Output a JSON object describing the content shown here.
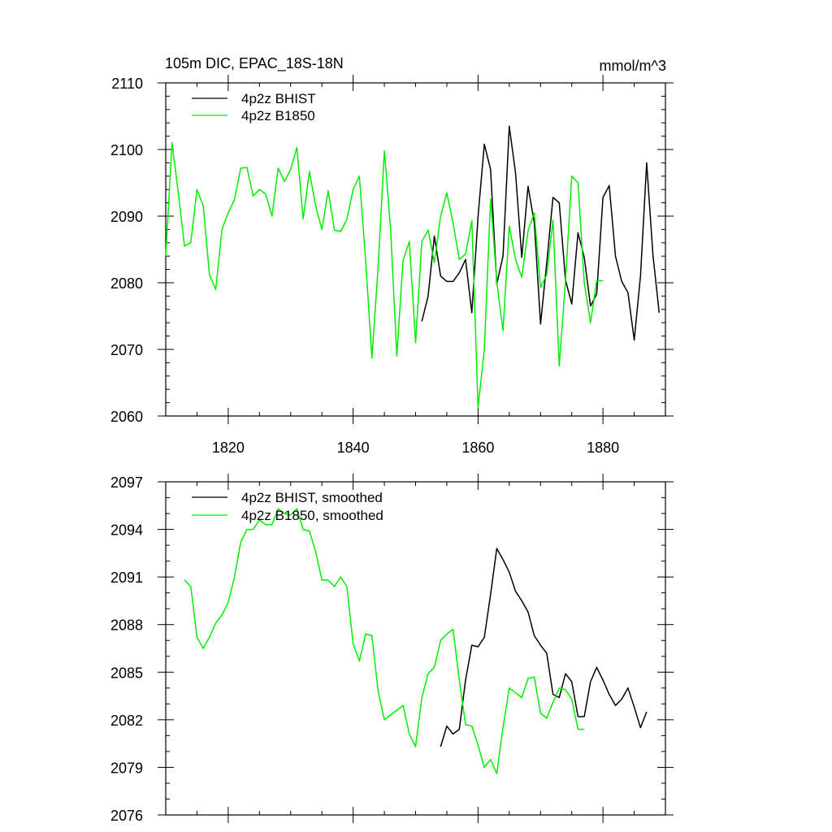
{
  "chart_data": [
    {
      "type": "line",
      "title": "105m DIC, EPAC_18S-18N",
      "units": "mmol/m^3",
      "xlim": [
        1810,
        1890
      ],
      "ylim": [
        2060,
        2110
      ],
      "x_ticks": [
        1820,
        1840,
        1860,
        1880
      ],
      "x_tick_labels": [
        "1820",
        "1840",
        "1860",
        "1880"
      ],
      "y_ticks": [
        2060,
        2070,
        2080,
        2090,
        2100,
        2110
      ],
      "y_tick_labels": [
        "2060",
        "2070",
        "2080",
        "2090",
        "2100",
        "2110"
      ],
      "legend": [
        "4p2z BHIST",
        "4p2z B1850"
      ],
      "series": [
        {
          "name": "4p2z BHIST",
          "color": "#000000",
          "x": [
            1851,
            1852,
            1853,
            1854,
            1855,
            1856,
            1857,
            1858,
            1859,
            1860,
            1861,
            1862,
            1863,
            1864,
            1865,
            1866,
            1867,
            1868,
            1869,
            1870,
            1871,
            1872,
            1873,
            1874,
            1875,
            1876,
            1877,
            1878,
            1879,
            1880,
            1881,
            1882,
            1883,
            1884,
            1885,
            1886,
            1887,
            1888,
            1889
          ],
          "values": [
            2074.2,
            2078,
            2087,
            2081,
            2080.2,
            2080.2,
            2081.5,
            2083.5,
            2075.5,
            2090,
            2100.8,
            2097,
            2079.8,
            2084,
            2103.5,
            2096.5,
            2083.8,
            2094.5,
            2089,
            2073.8,
            2083,
            2092.8,
            2092,
            2080.4,
            2076.8,
            2087.5,
            2083.8,
            2076.5,
            2078.3,
            2092.8,
            2094.6,
            2084,
            2080.2,
            2078.5,
            2071.4,
            2081,
            2098,
            2084.2,
            2075.5
          ]
        },
        {
          "name": "4p2z B1850",
          "color": "#00ee00",
          "x": [
            1810,
            1811,
            1812,
            1813,
            1814,
            1815,
            1816,
            1817,
            1818,
            1819,
            1820,
            1821,
            1822,
            1823,
            1824,
            1825,
            1826,
            1827,
            1828,
            1829,
            1830,
            1831,
            1832,
            1833,
            1834,
            1835,
            1836,
            1837,
            1838,
            1839,
            1840,
            1841,
            1842,
            1843,
            1844,
            1845,
            1846,
            1847,
            1848,
            1849,
            1850,
            1851,
            1852,
            1853,
            1854,
            1855,
            1856,
            1857,
            1858,
            1859,
            1860,
            1861,
            1862,
            1863,
            1864,
            1865,
            1866,
            1867,
            1868,
            1869,
            1870,
            1871,
            1872,
            1873,
            1874,
            1875,
            1876,
            1877,
            1878,
            1879,
            1880
          ],
          "values": [
            2084,
            2101,
            2093.5,
            2085.5,
            2086,
            2094,
            2091.6,
            2081.2,
            2079,
            2088,
            2090.5,
            2092.5,
            2097.2,
            2097.3,
            2093,
            2094,
            2093.3,
            2090,
            2097.2,
            2095.2,
            2097,
            2100.3,
            2089.6,
            2096.7,
            2091.5,
            2088,
            2093.8,
            2087.9,
            2087.7,
            2089.5,
            2094,
            2096,
            2083.4,
            2068.7,
            2082.4,
            2099.8,
            2087.9,
            2069,
            2083.4,
            2086.2,
            2071,
            2086.2,
            2087.9,
            2083,
            2090,
            2093.5,
            2089,
            2083.5,
            2084.3,
            2089.3,
            2061.3,
            2070,
            2092.6,
            2080.2,
            2072.8,
            2088.5,
            2083.5,
            2080.8,
            2087.8,
            2090.5,
            2079.3,
            2081.2,
            2089.4,
            2067.5,
            2080.3,
            2096,
            2095,
            2080,
            2074,
            2080.3,
            2080.3
          ]
        }
      ]
    },
    {
      "type": "line",
      "title": "",
      "xlim": [
        1810,
        1890
      ],
      "ylim": [
        2076,
        2097
      ],
      "x_ticks": [
        1820,
        1840,
        1860,
        1880
      ],
      "y_ticks": [
        2076,
        2079,
        2082,
        2085,
        2088,
        2091,
        2094,
        2097
      ],
      "y_tick_labels": [
        "2076",
        "2079",
        "2082",
        "2085",
        "2088",
        "2091",
        "2094",
        "2097"
      ],
      "legend": [
        "4p2z BHIST, smoothed",
        "4p2z B1850, smoothed"
      ],
      "series": [
        {
          "name": "4p2z BHIST, smoothed",
          "color": "#000000",
          "x": [
            1854,
            1855,
            1856,
            1857,
            1858,
            1859,
            1860,
            1861,
            1862,
            1863,
            1864,
            1865,
            1866,
            1867,
            1868,
            1869,
            1870,
            1871,
            1872,
            1873,
            1874,
            1875,
            1876,
            1877,
            1878,
            1879,
            1880,
            1881,
            1882,
            1883,
            1884,
            1885,
            1886,
            1887
          ],
          "values": [
            2080.3,
            2081.6,
            2081.1,
            2081.4,
            2084.5,
            2086.7,
            2086.6,
            2087.2,
            2089.9,
            2092.8,
            2092.1,
            2091.3,
            2090.1,
            2089.5,
            2088.8,
            2087.3,
            2086.7,
            2086.2,
            2083.6,
            2083.4,
            2084.9,
            2084.4,
            2082.2,
            2082.2,
            2084.4,
            2085.3,
            2084.5,
            2083.6,
            2082.9,
            2083.3,
            2084.0,
            2082.8,
            2081.5,
            2082.5
          ]
        },
        {
          "name": "4p2z B1850, smoothed",
          "color": "#00ee00",
          "x": [
            1813,
            1814,
            1815,
            1816,
            1817,
            1818,
            1819,
            1820,
            1821,
            1822,
            1823,
            1824,
            1825,
            1826,
            1827,
            1828,
            1829,
            1830,
            1831,
            1832,
            1833,
            1834,
            1835,
            1836,
            1837,
            1838,
            1839,
            1840,
            1841,
            1842,
            1843,
            1844,
            1845,
            1846,
            1847,
            1848,
            1849,
            1850,
            1851,
            1852,
            1853,
            1854,
            1855,
            1856,
            1857,
            1858,
            1859,
            1860,
            1861,
            1862,
            1863,
            1864,
            1865,
            1866,
            1867,
            1868,
            1869,
            1870,
            1871,
            1872,
            1873,
            1874,
            1875,
            1876,
            1877
          ],
          "values": [
            2090.8,
            2090.4,
            2087.2,
            2086.5,
            2087.2,
            2088.1,
            2088.6,
            2089.4,
            2091.0,
            2093.2,
            2094.0,
            2094.0,
            2094.6,
            2094.3,
            2094.3,
            2095.3,
            2095.0,
            2094.9,
            2095.3,
            2094.0,
            2093.9,
            2092.6,
            2090.8,
            2090.8,
            2090.4,
            2091.0,
            2090.4,
            2086.8,
            2085.7,
            2087.4,
            2087.3,
            2083.8,
            2082.0,
            2082.3,
            2082.6,
            2082.9,
            2081.1,
            2080.3,
            2083.4,
            2084.9,
            2085.3,
            2087.0,
            2087.4,
            2087.7,
            2084.5,
            2081.7,
            2081.6,
            2080.4,
            2079.0,
            2079.5,
            2078.6,
            2081.5,
            2084.0,
            2083.7,
            2083.4,
            2084.6,
            2084.7,
            2082.4,
            2082.1,
            2083.1,
            2084.0,
            2083.9,
            2083.3,
            2081.4,
            2081.4
          ]
        }
      ]
    }
  ]
}
